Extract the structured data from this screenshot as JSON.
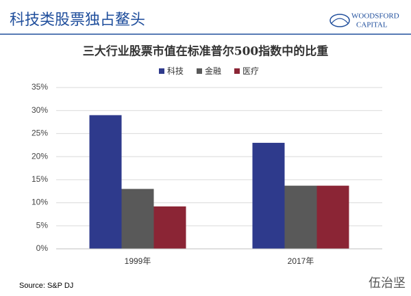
{
  "header": "科技类股票独占鳌头",
  "logo": {
    "name": "WOODSFORD",
    "sub": "CAPITAL"
  },
  "chart_data": {
    "type": "bar",
    "title": "三大行业股票市值在标准普尔500指数中的比重",
    "categories": [
      "1999年",
      "2017年"
    ],
    "series": [
      {
        "name": "科技",
        "color": "#2e3a8c",
        "values": [
          29,
          23
        ]
      },
      {
        "name": "金融",
        "color": "#595959",
        "values": [
          13,
          13.7
        ]
      },
      {
        "name": "医疗",
        "color": "#8b2535",
        "values": [
          9.2,
          13.7
        ]
      }
    ],
    "ylim": [
      0,
      35
    ],
    "yticks": [
      {
        "value": 0,
        "label": "0%"
      },
      {
        "value": 5,
        "label": "5%"
      },
      {
        "value": 10,
        "label": "10%"
      },
      {
        "value": 15,
        "label": "15%"
      },
      {
        "value": 20,
        "label": "20%"
      },
      {
        "value": 25,
        "label": "25%"
      },
      {
        "value": 30,
        "label": "30%"
      },
      {
        "value": 35,
        "label": "35%"
      }
    ],
    "grid": true,
    "legend": "top"
  },
  "source": "Source: S&P DJ",
  "watermark": "伍治坚"
}
